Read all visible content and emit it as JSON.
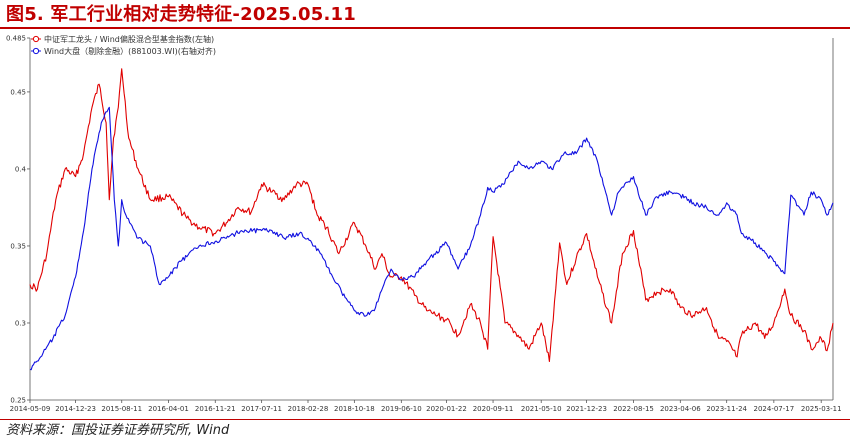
{
  "page": {
    "title": "图5. 军工行业相对走势特征-2025.05.11",
    "source": "资料来源：国投证券证券研究所, Wind",
    "accent_color": "#c00000"
  },
  "chart_data": {
    "type": "line",
    "ylim": [
      0.25,
      0.485
    ],
    "y_ticks": [
      0.25,
      0.3,
      0.35,
      0.4,
      0.45,
      0.485
    ],
    "y_tick_labels": [
      "0.25",
      "0.3",
      "0.35",
      "0.4",
      "0.45",
      "0.485"
    ],
    "x_range": [
      "2014-05-09",
      "2025-05-09"
    ],
    "x_tick_labels": [
      "2014-05-09",
      "2014-12-23",
      "2015-08-11",
      "2016-04-01",
      "2016-11-21",
      "2017-07-11",
      "2018-02-28",
      "2018-10-18",
      "2019-06-10",
      "2020-01-22",
      "2020-09-11",
      "2021-05-10",
      "2021-12-23",
      "2022-08-15",
      "2023-04-06",
      "2023-11-24",
      "2024-07-17",
      "2025-03-11"
    ],
    "legend_position": "top-left",
    "grid": false,
    "series": [
      {
        "name": "中证军工龙头 / Wind偏股混合型基金指数(左轴)",
        "color": "#e00000",
        "x": [
          "2014-05-09",
          "2014-06-15",
          "2014-08-01",
          "2014-09-15",
          "2014-11-01",
          "2014-12-23",
          "2015-02-01",
          "2015-03-15",
          "2015-04-20",
          "2015-05-25",
          "2015-06-10",
          "2015-07-01",
          "2015-07-25",
          "2015-08-11",
          "2015-09-15",
          "2015-11-01",
          "2016-01-01",
          "2016-04-01",
          "2016-07-01",
          "2016-09-01",
          "2016-11-21",
          "2017-01-15",
          "2017-03-15",
          "2017-05-20",
          "2017-07-11",
          "2017-09-01",
          "2017-11-01",
          "2018-01-01",
          "2018-02-28",
          "2018-04-15",
          "2018-06-01",
          "2018-08-01",
          "2018-10-18",
          "2018-12-15",
          "2019-02-01",
          "2019-03-05",
          "2019-04-15",
          "2019-06-10",
          "2019-08-15",
          "2019-10-15",
          "2020-01-22",
          "2020-03-20",
          "2020-05-20",
          "2020-07-10",
          "2020-08-15",
          "2020-09-11",
          "2020-11-10",
          "2021-01-15",
          "2021-03-10",
          "2021-05-10",
          "2021-06-20",
          "2021-08-10",
          "2021-09-15",
          "2021-11-01",
          "2021-12-23",
          "2022-02-15",
          "2022-04-27",
          "2022-06-20",
          "2022-08-15",
          "2022-10-15",
          "2022-12-10",
          "2023-02-15",
          "2023-04-06",
          "2023-06-10",
          "2023-08-15",
          "2023-10-15",
          "2023-11-24",
          "2024-01-15",
          "2024-02-06",
          "2024-04-15",
          "2024-06-01",
          "2024-07-17",
          "2024-09-10",
          "2024-10-10",
          "2024-12-15",
          "2025-01-20",
          "2025-03-11",
          "2025-04-09",
          "2025-05-09"
        ],
        "y": [
          0.325,
          0.322,
          0.345,
          0.38,
          0.4,
          0.395,
          0.41,
          0.44,
          0.455,
          0.43,
          0.38,
          0.42,
          0.44,
          0.465,
          0.42,
          0.4,
          0.38,
          0.382,
          0.368,
          0.362,
          0.358,
          0.365,
          0.375,
          0.372,
          0.39,
          0.385,
          0.38,
          0.39,
          0.39,
          0.37,
          0.362,
          0.345,
          0.365,
          0.35,
          0.335,
          0.345,
          0.33,
          0.33,
          0.318,
          0.308,
          0.302,
          0.292,
          0.312,
          0.3,
          0.283,
          0.356,
          0.3,
          0.292,
          0.283,
          0.3,
          0.275,
          0.352,
          0.325,
          0.342,
          0.358,
          0.33,
          0.3,
          0.345,
          0.36,
          0.315,
          0.32,
          0.322,
          0.31,
          0.305,
          0.31,
          0.29,
          0.288,
          0.278,
          0.292,
          0.3,
          0.29,
          0.3,
          0.322,
          0.305,
          0.295,
          0.283,
          0.29,
          0.282,
          0.3
        ]
      },
      {
        "name": "Wind大盘（剔除金融）(881003.WI)(右轴对齐)",
        "color": "#1010e0",
        "x": [
          "2014-05-09",
          "2014-07-01",
          "2014-09-01",
          "2014-11-01",
          "2014-12-23",
          "2015-02-01",
          "2015-03-15",
          "2015-05-01",
          "2015-06-10",
          "2015-07-05",
          "2015-07-25",
          "2015-08-11",
          "2015-09-01",
          "2015-11-01",
          "2016-01-01",
          "2016-02-15",
          "2016-04-01",
          "2016-06-01",
          "2016-09-01",
          "2016-11-21",
          "2017-01-15",
          "2017-04-01",
          "2017-07-11",
          "2017-09-01",
          "2017-11-01",
          "2018-01-15",
          "2018-02-28",
          "2018-05-01",
          "2018-07-01",
          "2018-08-15",
          "2018-10-18",
          "2018-12-20",
          "2019-02-01",
          "2019-03-15",
          "2019-04-20",
          "2019-06-10",
          "2019-08-10",
          "2019-10-15",
          "2020-01-22",
          "2020-03-20",
          "2020-05-20",
          "2020-07-10",
          "2020-08-15",
          "2020-09-11",
          "2020-11-01",
          "2021-01-15",
          "2021-03-10",
          "2021-05-10",
          "2021-07-01",
          "2021-09-01",
          "2021-11-01",
          "2021-12-23",
          "2022-02-15",
          "2022-04-27",
          "2022-06-01",
          "2022-08-15",
          "2022-10-15",
          "2022-12-10",
          "2023-02-15",
          "2023-04-06",
          "2023-06-10",
          "2023-08-15",
          "2023-10-15",
          "2023-11-24",
          "2024-01-15",
          "2024-02-06",
          "2024-04-15",
          "2024-06-10",
          "2024-07-17",
          "2024-09-10",
          "2024-10-10",
          "2024-12-15",
          "2025-01-20",
          "2025-03-11",
          "2025-04-09",
          "2025-05-09"
        ],
        "y": [
          0.27,
          0.278,
          0.29,
          0.305,
          0.33,
          0.36,
          0.4,
          0.43,
          0.44,
          0.38,
          0.35,
          0.38,
          0.37,
          0.355,
          0.35,
          0.325,
          0.33,
          0.34,
          0.35,
          0.353,
          0.355,
          0.36,
          0.36,
          0.36,
          0.355,
          0.358,
          0.355,
          0.345,
          0.33,
          0.32,
          0.308,
          0.305,
          0.31,
          0.325,
          0.335,
          0.328,
          0.33,
          0.34,
          0.352,
          0.335,
          0.35,
          0.37,
          0.388,
          0.385,
          0.39,
          0.405,
          0.4,
          0.405,
          0.4,
          0.41,
          0.41,
          0.42,
          0.405,
          0.37,
          0.385,
          0.395,
          0.37,
          0.382,
          0.385,
          0.383,
          0.378,
          0.375,
          0.37,
          0.378,
          0.37,
          0.358,
          0.352,
          0.345,
          0.34,
          0.332,
          0.383,
          0.37,
          0.385,
          0.38,
          0.37,
          0.378
        ]
      }
    ]
  }
}
